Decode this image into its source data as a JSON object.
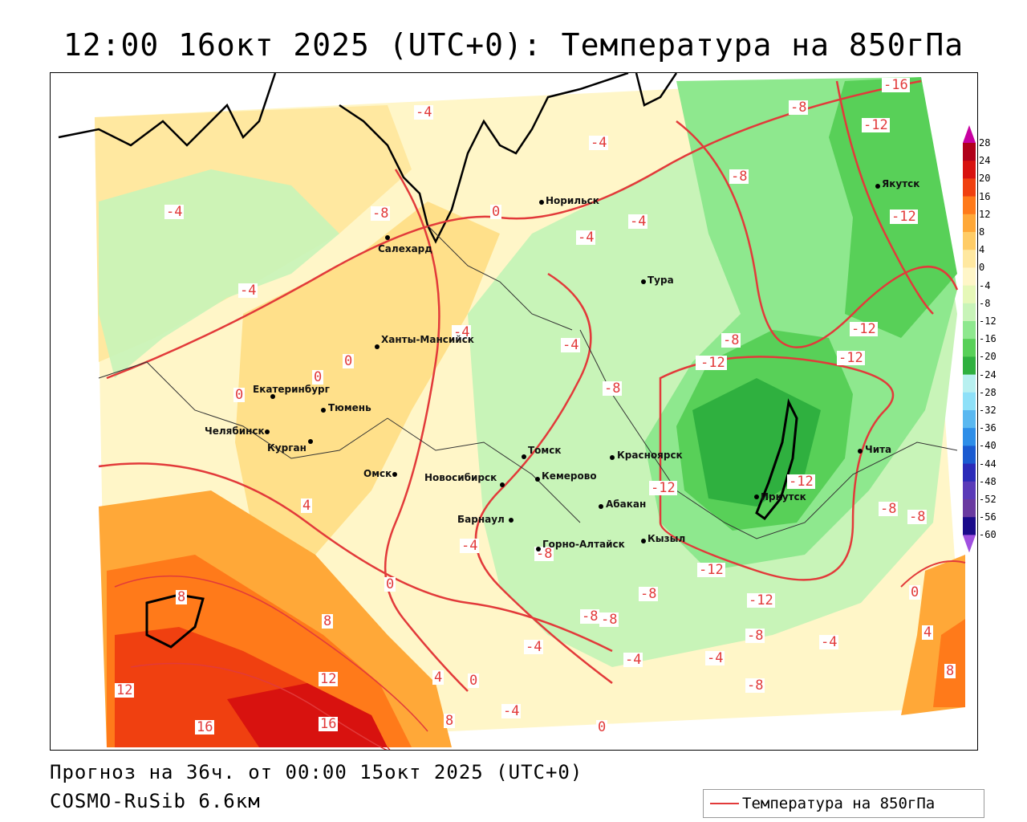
{
  "title": "12:00 16окт 2025 (UTC+0): Температура на 850гПа",
  "footer": {
    "forecast": "Прогноз на 36ч. от 00:00 15окт 2025 (UTC+0)",
    "model": "COSMO-RuSib 6.6км"
  },
  "legend": {
    "label": "Температура на 850гПа",
    "line_color": "#e23a3a"
  },
  "colorbar": {
    "ticks": [
      "28",
      "24",
      "20",
      "16",
      "12",
      "8",
      "4",
      "0",
      "-4",
      "-8",
      "-12",
      "-16",
      "-20",
      "-24",
      "-28",
      "-32",
      "-36",
      "-40",
      "-44",
      "-48",
      "-52",
      "-56",
      "-60"
    ],
    "colors": [
      "#b0001a",
      "#d8120f",
      "#f04010",
      "#ff7a1a",
      "#ffa838",
      "#ffcc66",
      "#ffe8a0",
      "#fff6c8",
      "#e6f8b8",
      "#c8f4b8",
      "#8ee88e",
      "#58d058",
      "#2fb03f",
      "#b8f0f0",
      "#8ee0f8",
      "#5ab8f0",
      "#2e8ee8",
      "#1a5ad0",
      "#2a2ab8",
      "#5a3ab8",
      "#6a3aa0",
      "#1a0a8a"
    ],
    "top_color": "#c800a0",
    "bottom_color": "#a050e0"
  },
  "cities": [
    {
      "name": "Норильск",
      "id": "norilsk"
    },
    {
      "name": "Салехард",
      "id": "salekhard"
    },
    {
      "name": "Тура",
      "id": "tura"
    },
    {
      "name": "Якутск",
      "id": "yakutsk"
    },
    {
      "name": "Ханты-Мансийск",
      "id": "khanty"
    },
    {
      "name": "Екатеринбург",
      "id": "ekb"
    },
    {
      "name": "Тюмень",
      "id": "tyumen"
    },
    {
      "name": "Челябинск",
      "id": "chelyabinsk"
    },
    {
      "name": "Курган",
      "id": "kurgan"
    },
    {
      "name": "Омск",
      "id": "omsk"
    },
    {
      "name": "Новосибирск",
      "id": "novosibirsk"
    },
    {
      "name": "Томск",
      "id": "tomsk"
    },
    {
      "name": "Кемерово",
      "id": "kemerovo"
    },
    {
      "name": "Красноярск",
      "id": "krasnoyarsk"
    },
    {
      "name": "Барнаул",
      "id": "barnaul"
    },
    {
      "name": "Абакан",
      "id": "abakan"
    },
    {
      "name": "Горно-Алтайск",
      "id": "gorno"
    },
    {
      "name": "Кызыл",
      "id": "kyzyl"
    },
    {
      "name": "Иркутск",
      "id": "irkutsk"
    },
    {
      "name": "Чита",
      "id": "chita"
    }
  ],
  "isotherm_labels": [
    "-16",
    "-12",
    "-8",
    "-4",
    "-4",
    "-8",
    "-12",
    "-4",
    "-4",
    "-4",
    "-8",
    "0",
    "-4",
    "-12",
    "-12",
    "-4",
    "-4",
    "-8",
    "-4",
    "0",
    "-12",
    "-12",
    "0",
    "-8",
    "-12",
    "0",
    "-8",
    "-8",
    "-12",
    "-8",
    "-4",
    "-12",
    "-4",
    "-8",
    "4",
    "-8",
    "0",
    "-8",
    "0",
    "8",
    "-4",
    "8",
    "-4",
    "-8",
    "-4",
    "12",
    "12",
    "0",
    "-4",
    "4",
    "16",
    "16",
    "8",
    "0",
    "-8",
    "4",
    "8"
  ]
}
